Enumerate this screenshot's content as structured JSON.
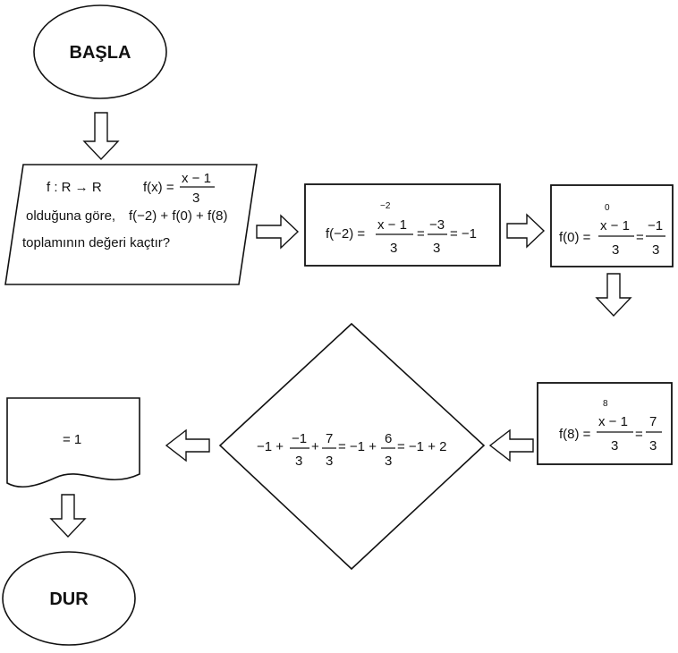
{
  "start": {
    "label": "BAŞLA"
  },
  "end": {
    "label": "DUR"
  },
  "input": {
    "line1_left": "f : R → R",
    "line1_fx": "f(x) =",
    "line1_num": "x − 1",
    "line1_den": "3",
    "line2_text": "olduğuna göre,",
    "line2_expr": "f(−2) + f(0) + f(8)",
    "line3": "toplamının değeri  kaçtır?"
  },
  "step1": {
    "lhs": "f(−2) =",
    "sup": "−2",
    "num1": "x − 1",
    "den1": "3",
    "eq1": "=",
    "num2": "−3",
    "den2": "3",
    "tail": "= −1"
  },
  "step2": {
    "lhs": "f(0) =",
    "sup": "0",
    "num1": "x − 1",
    "den1": "3",
    "eq1": "=",
    "num2": "−1",
    "den2": "3"
  },
  "step3": {
    "lhs": "f(8) =",
    "sup": "8",
    "num1": "x − 1",
    "den1": "3",
    "eq1": "=",
    "num2": "7",
    "den2": "3"
  },
  "decision": {
    "t1": "−1 +",
    "f1_num": "−1",
    "f1_den": "3",
    "t2": "+",
    "f2_num": "7",
    "f2_den": "3",
    "t3": "= −1 +",
    "f3_num": "6",
    "f3_den": "3",
    "t4": "= −1 + 2"
  },
  "output": {
    "label": "= 1"
  }
}
